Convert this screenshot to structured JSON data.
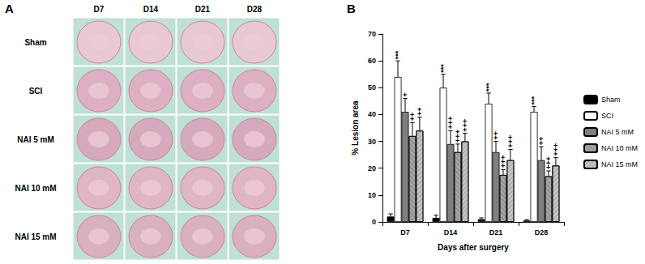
{
  "figure": {
    "panel_a": {
      "label": "A",
      "columns": [
        "D7",
        "D14",
        "D21",
        "D28"
      ],
      "rows": [
        "Sham",
        "SCI",
        "NAI 5 mM",
        "NAI 10 mM",
        "NAI 15 mM"
      ]
    },
    "panel_b_label": "B"
  },
  "chart_data": {
    "type": "bar",
    "y_label": "% Lesion area",
    "x_label": "Days after surgery",
    "categories": [
      "D7",
      "D14",
      "D21",
      "D28"
    ],
    "series": [
      {
        "name": "Sham",
        "color": "#000000",
        "values": [
          2,
          1.5,
          1,
          0.5
        ],
        "errors": [
          1,
          1,
          0.5,
          0.3
        ]
      },
      {
        "name": "SCI",
        "color": "#ffffff",
        "values": [
          54,
          50,
          44,
          41
        ],
        "errors": [
          6,
          5,
          4,
          2
        ],
        "significance": [
          "***",
          "***",
          "***",
          "***"
        ]
      },
      {
        "name": "NAI 5 mM",
        "color": "#7f7f7f",
        "values": [
          41,
          29,
          26,
          23
        ],
        "errors": [
          5,
          5,
          4,
          5
        ],
        "significance": [
          "+",
          "+++",
          "++",
          "++"
        ]
      },
      {
        "name": "NAI 10 mM",
        "color": "#a6a6a6",
        "values": [
          32,
          26,
          17.5,
          17
        ],
        "errors": [
          5,
          3,
          2,
          2
        ],
        "significance": [
          "++",
          "+++",
          "+++",
          "+++"
        ]
      },
      {
        "name": "NAI 15 mM",
        "color": "#c8c8c8",
        "values": [
          34,
          30,
          23,
          21
        ],
        "errors": [
          5,
          3,
          4,
          3
        ],
        "significance": [
          "++",
          "+++",
          "+++",
          "+++"
        ]
      }
    ],
    "ylim": [
      0,
      70
    ],
    "yticks": [
      0,
      10,
      20,
      30,
      40,
      50,
      60,
      70
    ],
    "grid": false,
    "legend": "right"
  }
}
